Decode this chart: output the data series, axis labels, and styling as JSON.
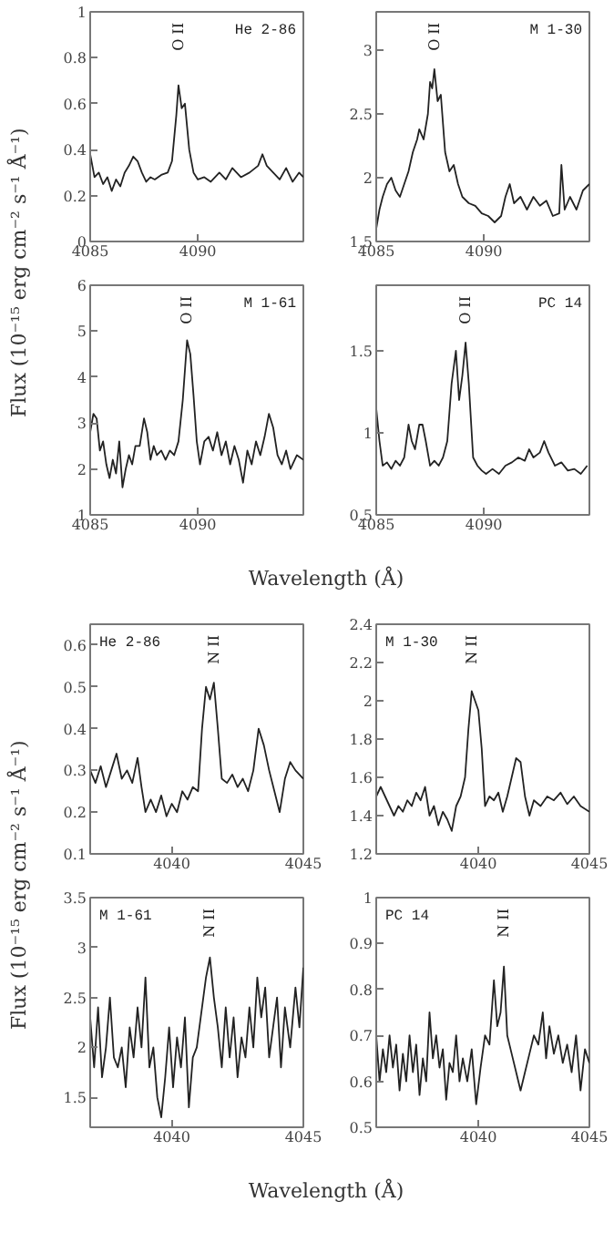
{
  "chart_data": [
    {
      "type": "line",
      "title": "He 2-86",
      "ylabel": "Flux (10⁻¹⁵ erg cm⁻² s⁻¹ Å⁻¹)",
      "color": "#222222",
      "xlim": [
        4085,
        4094.9
      ],
      "xticks": [
        4085,
        4090
      ],
      "ylim": [
        0,
        1
      ],
      "yticks": [
        0,
        0.2,
        0.4,
        0.6,
        0.8,
        1
      ],
      "annotations": [
        "O II"
      ],
      "x": [
        4085,
        4085.2,
        4085.4,
        4085.6,
        4085.8,
        4086.0,
        4086.2,
        4086.4,
        4086.6,
        4086.8,
        4087.0,
        4087.2,
        4087.4,
        4087.6,
        4087.8,
        4088.0,
        4088.3,
        4088.6,
        4088.8,
        4089.0,
        4089.1,
        4089.25,
        4089.4,
        4089.6,
        4089.8,
        4090.0,
        4090.3,
        4090.6,
        4091.0,
        4091.3,
        4091.6,
        4092.0,
        4092.4,
        4092.8,
        4093.0,
        4093.2,
        4093.5,
        4093.8,
        4094.1,
        4094.4,
        4094.7,
        4094.9
      ],
      "values": [
        0.38,
        0.28,
        0.3,
        0.25,
        0.28,
        0.22,
        0.27,
        0.24,
        0.3,
        0.33,
        0.37,
        0.35,
        0.3,
        0.26,
        0.28,
        0.27,
        0.29,
        0.3,
        0.35,
        0.55,
        0.68,
        0.58,
        0.6,
        0.4,
        0.3,
        0.27,
        0.28,
        0.26,
        0.3,
        0.27,
        0.32,
        0.28,
        0.3,
        0.33,
        0.38,
        0.33,
        0.3,
        0.27,
        0.32,
        0.26,
        0.3,
        0.28
      ]
    },
    {
      "type": "line",
      "title": "M 1-30",
      "color": "#222222",
      "xlim": [
        4085,
        4094.9
      ],
      "xticks": [
        4085,
        4090
      ],
      "ylim": [
        1.5,
        3.3
      ],
      "yticks": [
        1.5,
        2,
        2.5,
        3
      ],
      "annotations": [
        "O II"
      ],
      "x": [
        4085,
        4085.15,
        4085.3,
        4085.5,
        4085.7,
        4085.9,
        4086.1,
        4086.3,
        4086.5,
        4086.7,
        4086.9,
        4087.0,
        4087.2,
        4087.4,
        4087.5,
        4087.6,
        4087.7,
        4087.85,
        4088.0,
        4088.2,
        4088.4,
        4088.6,
        4088.8,
        4089.0,
        4089.3,
        4089.6,
        4089.9,
        4090.2,
        4090.5,
        4090.8,
        4091.0,
        4091.2,
        4091.4,
        4091.7,
        4092.0,
        4092.3,
        4092.6,
        4092.9,
        4093.2,
        4093.5,
        4093.6,
        4093.75,
        4094.0,
        4094.3,
        4094.6,
        4094.9
      ],
      "values": [
        1.6,
        1.75,
        1.85,
        1.95,
        2.0,
        1.9,
        1.85,
        1.95,
        2.05,
        2.2,
        2.3,
        2.38,
        2.3,
        2.5,
        2.75,
        2.7,
        2.85,
        2.6,
        2.65,
        2.2,
        2.05,
        2.1,
        1.95,
        1.85,
        1.8,
        1.78,
        1.72,
        1.7,
        1.65,
        1.7,
        1.85,
        1.95,
        1.8,
        1.85,
        1.75,
        1.85,
        1.78,
        1.82,
        1.7,
        1.72,
        2.1,
        1.75,
        1.85,
        1.75,
        1.9,
        1.95
      ]
    },
    {
      "type": "line",
      "title": "M 1-61",
      "xlabel": "Wavelength (Å)",
      "color": "#222222",
      "xlim": [
        4085,
        4094.9
      ],
      "xticks": [
        4085,
        4090
      ],
      "ylim": [
        1,
        6
      ],
      "yticks": [
        1,
        2,
        3,
        4,
        5,
        6
      ],
      "annotations": [
        "O II"
      ],
      "x": [
        4085,
        4085.15,
        4085.3,
        4085.45,
        4085.6,
        4085.75,
        4085.9,
        4086.05,
        4086.2,
        4086.35,
        4086.5,
        4086.65,
        4086.8,
        4086.95,
        4087.1,
        4087.3,
        4087.5,
        4087.65,
        4087.8,
        4087.95,
        4088.1,
        4088.3,
        4088.5,
        4088.7,
        4088.9,
        4089.1,
        4089.3,
        4089.5,
        4089.65,
        4089.8,
        4089.95,
        4090.1,
        4090.3,
        4090.5,
        4090.7,
        4090.9,
        4091.1,
        4091.3,
        4091.5,
        4091.7,
        4091.9,
        4092.1,
        4092.3,
        4092.5,
        4092.7,
        4092.9,
        4093.1,
        4093.3,
        4093.5,
        4093.7,
        4093.9,
        4094.1,
        4094.3,
        4094.6,
        4094.9
      ],
      "values": [
        2.8,
        3.2,
        3.1,
        2.4,
        2.6,
        2.1,
        1.8,
        2.2,
        1.9,
        2.6,
        1.6,
        2.0,
        2.3,
        2.1,
        2.5,
        2.5,
        3.1,
        2.8,
        2.2,
        2.5,
        2.3,
        2.4,
        2.2,
        2.4,
        2.3,
        2.6,
        3.5,
        4.8,
        4.5,
        3.6,
        2.6,
        2.1,
        2.6,
        2.7,
        2.4,
        2.8,
        2.3,
        2.6,
        2.1,
        2.5,
        2.2,
        1.7,
        2.4,
        2.1,
        2.6,
        2.3,
        2.7,
        3.2,
        2.9,
        2.3,
        2.1,
        2.4,
        2.0,
        2.3,
        2.2
      ]
    },
    {
      "type": "line",
      "title": "PC 14",
      "color": "#222222",
      "xlim": [
        4085,
        4094.9
      ],
      "xticks": [
        4085,
        4090
      ],
      "ylim": [
        0.5,
        1.9
      ],
      "yticks": [
        0.5,
        1,
        1.5
      ],
      "annotations": [
        "O II"
      ],
      "x": [
        4085,
        4085.15,
        4085.3,
        4085.5,
        4085.7,
        4085.9,
        4086.1,
        4086.3,
        4086.5,
        4086.65,
        4086.8,
        4087.0,
        4087.15,
        4087.3,
        4087.5,
        4087.7,
        4087.9,
        4088.1,
        4088.3,
        4088.5,
        4088.7,
        4088.85,
        4089.0,
        4089.15,
        4089.3,
        4089.5,
        4089.7,
        4089.9,
        4090.1,
        4090.4,
        4090.7,
        4091.0,
        4091.3,
        4091.6,
        4091.9,
        4092.1,
        4092.3,
        4092.6,
        4092.8,
        4093.0,
        4093.3,
        4093.6,
        4093.9,
        4094.2,
        4094.5,
        4094.8
      ],
      "values": [
        1.15,
        0.95,
        0.8,
        0.82,
        0.78,
        0.83,
        0.8,
        0.85,
        1.05,
        0.95,
        0.9,
        1.05,
        1.05,
        0.95,
        0.8,
        0.83,
        0.8,
        0.85,
        0.95,
        1.3,
        1.5,
        1.2,
        1.35,
        1.55,
        1.3,
        0.85,
        0.8,
        0.77,
        0.75,
        0.78,
        0.75,
        0.8,
        0.82,
        0.85,
        0.83,
        0.9,
        0.85,
        0.88,
        0.95,
        0.88,
        0.8,
        0.82,
        0.77,
        0.78,
        0.75,
        0.8
      ]
    },
    {
      "type": "line",
      "title": "He 2-86",
      "ylabel": "Flux (10⁻¹⁵ erg cm⁻² s⁻¹ Å⁻¹)",
      "color": "#222222",
      "xlim": [
        4036.9,
        4045
      ],
      "xticks": [
        4040,
        4045
      ],
      "ylim": [
        0.1,
        0.65
      ],
      "yticks": [
        0.1,
        0.2,
        0.3,
        0.4,
        0.5,
        0.6
      ],
      "annotations": [
        "N II"
      ],
      "x": [
        4036.9,
        4037.1,
        4037.3,
        4037.5,
        4037.7,
        4037.9,
        4038.1,
        4038.3,
        4038.5,
        4038.7,
        4038.85,
        4039.0,
        4039.2,
        4039.4,
        4039.6,
        4039.8,
        4040.0,
        4040.2,
        4040.4,
        4040.6,
        4040.8,
        4041.0,
        4041.15,
        4041.3,
        4041.45,
        4041.6,
        4041.75,
        4041.9,
        4042.1,
        4042.3,
        4042.5,
        4042.7,
        4042.9,
        4043.1,
        4043.3,
        4043.5,
        4043.7,
        4043.9,
        4044.1,
        4044.3,
        4044.5,
        4044.7,
        4045.0
      ],
      "values": [
        0.3,
        0.27,
        0.31,
        0.26,
        0.3,
        0.34,
        0.28,
        0.3,
        0.27,
        0.33,
        0.26,
        0.2,
        0.23,
        0.2,
        0.24,
        0.19,
        0.22,
        0.2,
        0.25,
        0.23,
        0.26,
        0.25,
        0.4,
        0.5,
        0.47,
        0.51,
        0.4,
        0.28,
        0.27,
        0.29,
        0.26,
        0.28,
        0.25,
        0.3,
        0.4,
        0.36,
        0.3,
        0.25,
        0.2,
        0.28,
        0.32,
        0.3,
        0.28
      ]
    },
    {
      "type": "line",
      "title": "M 1-30",
      "color": "#222222",
      "xlim": [
        4035.4,
        4045
      ],
      "xticks": [
        4040,
        4045
      ],
      "ylim": [
        1.2,
        2.4
      ],
      "yticks": [
        1.2,
        1.4,
        1.6,
        1.8,
        2,
        2.2,
        2.4
      ],
      "annotations": [
        "N II"
      ],
      "x": [
        4035.4,
        4035.6,
        4035.8,
        4036.0,
        4036.2,
        4036.4,
        4036.6,
        4036.8,
        4037.0,
        4037.2,
        4037.4,
        4037.6,
        4037.8,
        4038.0,
        4038.2,
        4038.4,
        4038.6,
        4038.8,
        4039.0,
        4039.2,
        4039.4,
        4039.55,
        4039.7,
        4039.85,
        4040.0,
        4040.15,
        4040.3,
        4040.5,
        4040.7,
        4040.9,
        4041.1,
        4041.3,
        4041.5,
        4041.7,
        4041.9,
        4042.1,
        4042.3,
        4042.5,
        4042.8,
        4043.1,
        4043.4,
        4043.7,
        4044.0,
        4044.3,
        4044.6,
        4045.0
      ],
      "values": [
        1.5,
        1.55,
        1.5,
        1.45,
        1.4,
        1.45,
        1.42,
        1.48,
        1.45,
        1.52,
        1.48,
        1.55,
        1.4,
        1.45,
        1.35,
        1.42,
        1.38,
        1.32,
        1.45,
        1.5,
        1.6,
        1.85,
        2.05,
        2.0,
        1.95,
        1.75,
        1.45,
        1.5,
        1.48,
        1.52,
        1.42,
        1.5,
        1.6,
        1.7,
        1.68,
        1.5,
        1.4,
        1.48,
        1.45,
        1.5,
        1.48,
        1.52,
        1.46,
        1.5,
        1.45,
        1.42
      ]
    },
    {
      "type": "line",
      "title": "M 1-61",
      "xlabel": "Wavelength (Å)",
      "color": "#222222",
      "xlim": [
        4036.9,
        4045
      ],
      "xticks": [
        4040,
        4045
      ],
      "ylim": [
        1.2,
        3.5
      ],
      "yticks": [
        1.5,
        2,
        2.5,
        3,
        3.5
      ],
      "annotations": [
        "N II"
      ],
      "x": [
        4036.9,
        4037.05,
        4037.2,
        4037.35,
        4037.5,
        4037.65,
        4037.8,
        4037.95,
        4038.1,
        4038.25,
        4038.4,
        4038.55,
        4038.7,
        4038.85,
        4039.0,
        4039.15,
        4039.3,
        4039.45,
        4039.6,
        4039.75,
        4039.9,
        4040.05,
        4040.2,
        4040.35,
        4040.5,
        4040.65,
        4040.8,
        4040.95,
        4041.1,
        4041.3,
        4041.45,
        4041.6,
        4041.75,
        4041.9,
        4042.05,
        4042.2,
        4042.35,
        4042.5,
        4042.65,
        4042.8,
        4042.95,
        4043.1,
        4043.25,
        4043.4,
        4043.55,
        4043.7,
        4043.85,
        4044.0,
        4044.15,
        4044.3,
        4044.5,
        4044.7,
        4044.85,
        4045.0
      ],
      "values": [
        2.3,
        1.8,
        2.4,
        1.7,
        2.0,
        2.5,
        1.9,
        1.8,
        2.0,
        1.6,
        2.2,
        1.9,
        2.4,
        2.0,
        2.7,
        1.8,
        2.0,
        1.5,
        1.3,
        1.7,
        2.2,
        1.6,
        2.1,
        1.8,
        2.3,
        1.4,
        1.9,
        2.0,
        2.3,
        2.7,
        2.9,
        2.5,
        2.2,
        1.8,
        2.4,
        1.9,
        2.3,
        1.7,
        2.1,
        1.9,
        2.4,
        2.0,
        2.7,
        2.3,
        2.6,
        1.9,
        2.2,
        2.5,
        1.8,
        2.4,
        2.0,
        2.6,
        2.2,
        2.8
      ]
    },
    {
      "type": "line",
      "title": "PC 14",
      "color": "#222222",
      "xlim": [
        4035.4,
        4045
      ],
      "xticks": [
        4040,
        4045
      ],
      "ylim": [
        0.5,
        1
      ],
      "yticks": [
        0.5,
        0.6,
        0.7,
        0.8,
        0.9,
        1
      ],
      "annotations": [
        "N II"
      ],
      "x": [
        4035.4,
        4035.55,
        4035.7,
        4035.85,
        4036.0,
        4036.15,
        4036.3,
        4036.45,
        4036.6,
        4036.75,
        4036.9,
        4037.05,
        4037.2,
        4037.35,
        4037.5,
        4037.65,
        4037.8,
        4037.95,
        4038.1,
        4038.25,
        4038.4,
        4038.55,
        4038.7,
        4038.85,
        4039.0,
        4039.15,
        4039.3,
        4039.5,
        4039.7,
        4039.9,
        4040.1,
        4040.3,
        4040.5,
        4040.7,
        4040.85,
        4041.0,
        4041.15,
        4041.3,
        4041.5,
        4041.7,
        4041.9,
        4042.1,
        4042.3,
        4042.5,
        4042.7,
        4042.9,
        4043.05,
        4043.2,
        4043.4,
        4043.6,
        4043.8,
        4044.0,
        4044.2,
        4044.4,
        4044.6,
        4044.8,
        4045.0
      ],
      "values": [
        0.7,
        0.6,
        0.67,
        0.62,
        0.7,
        0.63,
        0.68,
        0.58,
        0.66,
        0.6,
        0.7,
        0.62,
        0.68,
        0.57,
        0.65,
        0.6,
        0.75,
        0.65,
        0.7,
        0.63,
        0.67,
        0.56,
        0.64,
        0.62,
        0.7,
        0.6,
        0.65,
        0.6,
        0.67,
        0.55,
        0.63,
        0.7,
        0.68,
        0.82,
        0.72,
        0.75,
        0.85,
        0.7,
        0.66,
        0.62,
        0.58,
        0.62,
        0.66,
        0.7,
        0.68,
        0.75,
        0.65,
        0.72,
        0.66,
        0.7,
        0.64,
        0.68,
        0.62,
        0.7,
        0.58,
        0.67,
        0.64
      ]
    }
  ]
}
